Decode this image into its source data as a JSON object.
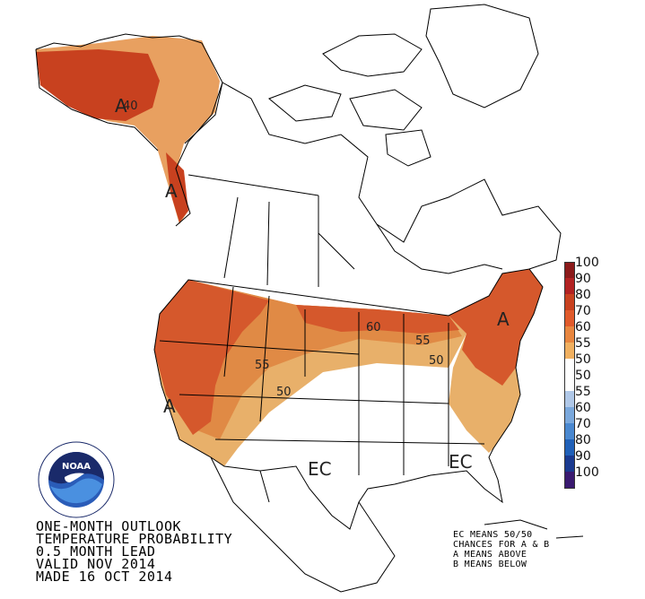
{
  "map": {
    "region_labels": [
      {
        "id": "alaska-a",
        "text": "A"
      },
      {
        "id": "alaska-40",
        "text": "40"
      },
      {
        "id": "panhandle-a",
        "text": "A"
      },
      {
        "id": "west-a",
        "text": "A"
      },
      {
        "id": "east-a",
        "text": "A"
      },
      {
        "id": "contour-55",
        "text": "55"
      },
      {
        "id": "contour-50",
        "text": "50"
      },
      {
        "id": "contour-60",
        "text": "60"
      },
      {
        "id": "contour-55-east",
        "text": "55"
      },
      {
        "id": "contour-50-east",
        "text": "50"
      },
      {
        "id": "ec-south",
        "text": "EC"
      },
      {
        "id": "ec-southeast",
        "text": "EC"
      }
    ],
    "colors": {
      "above_40": "#f0c07a",
      "above_50": "#e8a060",
      "above_60": "#e07b39",
      "above_70": "#c8411f",
      "ocean": "#ffffff",
      "land": "#ffffff",
      "border": "#000000"
    }
  },
  "legend": {
    "labels": [
      "100",
      "90",
      "80",
      "70",
      "60",
      "55",
      "50",
      "50",
      "55",
      "60",
      "70",
      "80",
      "90",
      "100"
    ],
    "colors": [
      "#8b1a1a",
      "#b22222",
      "#c8411f",
      "#e05a2b",
      "#e8863f",
      "#f0b060",
      "#ffffff",
      "#ffffff",
      "#b0c8e8",
      "#7aa8dc",
      "#4a88d0",
      "#2060b8",
      "#1a3a90",
      "#3a1a70"
    ]
  },
  "logo": {
    "name": "NOAA",
    "ring_text": "NATIONAL OCEANIC AND ATMOSPHERIC ADMINISTRATION · U.S. DEPARTMENT OF COMMERCE"
  },
  "title_block": {
    "line1": "ONE-MONTH OUTLOOK",
    "line2": "TEMPERATURE PROBABILITY",
    "line3": "0.5 MONTH LEAD",
    "line4": "VALID NOV 2014",
    "line5": "MADE 16 OCT 2014"
  },
  "key_block": {
    "line1": "EC MEANS 50/50",
    "line2": "CHANCES FOR A & B",
    "line3": "A MEANS ABOVE",
    "line4": "B MEANS BELOW"
  }
}
